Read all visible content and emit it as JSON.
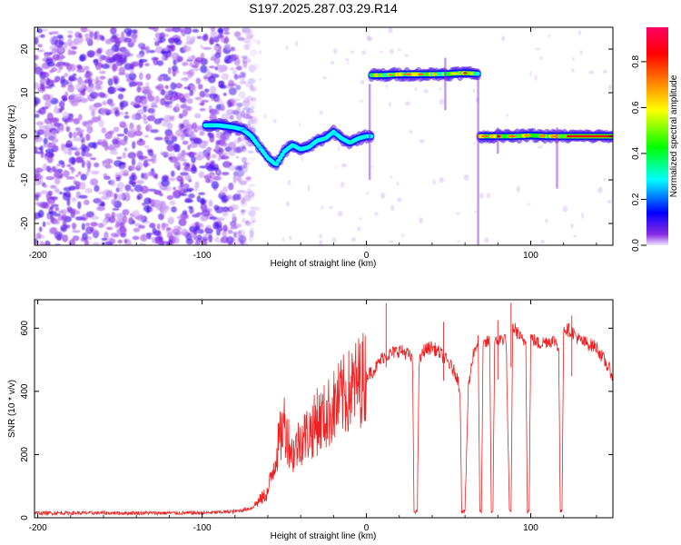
{
  "title": "S197.2025.287.03.29.R14",
  "chart_data": [
    {
      "type": "heatmap",
      "xlabel": "Height of straight line (km)",
      "ylabel": "Frequency (Hz)",
      "xlim": [
        -202,
        150
      ],
      "ylim": [
        -25,
        25
      ],
      "xticks": [
        -200,
        -100,
        0,
        100
      ],
      "xtick_labels": [
        "-200",
        "-100",
        "0",
        "100"
      ],
      "yticks": [
        -20,
        -10,
        0,
        10,
        20
      ],
      "ytick_labels": [
        "-20",
        "-10",
        "0",
        "10",
        "20"
      ],
      "colorbar": {
        "label": "Normalized spectral amplitude",
        "range": [
          0,
          0.95
        ],
        "ticks": [
          0,
          0.2,
          0.4,
          0.6,
          0.8
        ],
        "tick_labels": [
          "0.0",
          "0.2",
          "0.4",
          "0.6",
          "0.8"
        ],
        "colors": [
          "#f0e4ff",
          "#8a2be2",
          "#0000ff",
          "#00ffff",
          "#00ff00",
          "#ffff00",
          "#ff8000",
          "#ff0000",
          "#ff0066"
        ]
      },
      "noise_region_km": [
        -202,
        -75
      ],
      "ridge_segments": [
        {
          "x": [
            -98,
            -90,
            -80,
            -75,
            -70,
            -65,
            -60,
            -55,
            -50,
            -45,
            -40,
            -35,
            -30,
            -25,
            -20,
            -15,
            -10,
            -5,
            0,
            3
          ],
          "y": [
            2.5,
            2.5,
            2.0,
            1.5,
            0.0,
            -2.5,
            -5.0,
            -6.5,
            -3.5,
            -2.0,
            -3.0,
            -2.5,
            -1.0,
            -0.5,
            1.0,
            -0.5,
            -1.5,
            -0.5,
            0.0,
            0.0
          ],
          "peak": 0.35
        },
        {
          "x": [
            3,
            10,
            20,
            30,
            40,
            50,
            60,
            68
          ],
          "y": [
            14.0,
            14.0,
            14.2,
            14.2,
            14.2,
            14.3,
            14.5,
            14.3
          ],
          "peak": 0.85
        },
        {
          "x": [
            69,
            80,
            90,
            100,
            110,
            115,
            120,
            130,
            140,
            150
          ],
          "y": [
            0.0,
            0.0,
            0.0,
            0.2,
            0.0,
            0.0,
            0.0,
            0.0,
            0.0,
            0.0
          ],
          "peak": 0.9
        }
      ]
    },
    {
      "type": "line",
      "xlabel": "Height of straight line (km)",
      "ylabel": "SNR (10 * v/v)",
      "xlim": [
        -202,
        150
      ],
      "ylim": [
        0,
        690
      ],
      "xticks": [
        -200,
        -100,
        0,
        100
      ],
      "xtick_labels": [
        "-200",
        "-100",
        "0",
        "100"
      ],
      "yticks": [
        0,
        200,
        400,
        600
      ],
      "ytick_labels": [
        "0",
        "200",
        "400",
        "600"
      ],
      "color": "#ee2222",
      "series": [
        {
          "name": "SNR",
          "x": [
            -202,
            -150,
            -100,
            -80,
            -70,
            -60,
            -55,
            -50,
            -45,
            -40,
            -35,
            -30,
            -25,
            -20,
            -15,
            -10,
            -5,
            0,
            5,
            10,
            15,
            20,
            25,
            28,
            29,
            30,
            31,
            32,
            35,
            40,
            45,
            50,
            55,
            57,
            58,
            60,
            62,
            65,
            68,
            69,
            70,
            71,
            72,
            75,
            76,
            77,
            78,
            80,
            85,
            87,
            88,
            89,
            90,
            95,
            97,
            98,
            99,
            100,
            105,
            110,
            115,
            117,
            118,
            119,
            120,
            125,
            130,
            140,
            150
          ],
          "y": [
            15,
            15,
            15,
            20,
            30,
            80,
            200,
            300,
            200,
            250,
            270,
            300,
            320,
            350,
            380,
            400,
            430,
            450,
            470,
            510,
            520,
            530,
            520,
            500,
            20,
            20,
            20,
            490,
            530,
            540,
            520,
            490,
            450,
            400,
            20,
            20,
            410,
            520,
            560,
            20,
            20,
            540,
            550,
            560,
            20,
            20,
            550,
            560,
            570,
            20,
            20,
            600,
            600,
            560,
            560,
            20,
            20,
            570,
            550,
            560,
            560,
            540,
            20,
            20,
            600,
            590,
            560,
            540,
            450
          ]
        }
      ]
    }
  ]
}
